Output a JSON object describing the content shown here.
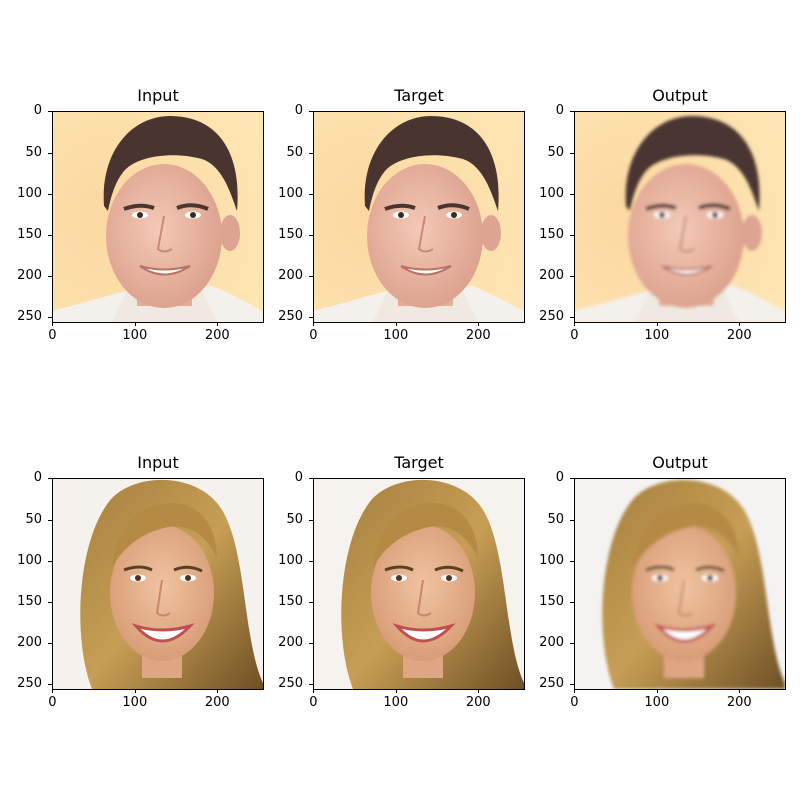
{
  "figure": {
    "rows": [
      {
        "subject": "man",
        "panels": [
          {
            "title": "Input",
            "variant": "sharp",
            "background": "#fde6b4"
          },
          {
            "title": "Target",
            "variant": "sharp",
            "background": "#fde6b4"
          },
          {
            "title": "Output",
            "variant": "smooth",
            "background": "#fbe7c1"
          }
        ]
      },
      {
        "subject": "woman",
        "panels": [
          {
            "title": "Input",
            "variant": "sharp",
            "background": "#f5f2ee"
          },
          {
            "title": "Target",
            "variant": "sharp",
            "background": "#f6f3ef"
          },
          {
            "title": "Output",
            "variant": "smooth",
            "background": "#f5f3f1"
          }
        ]
      }
    ],
    "y_ticks": [
      "0",
      "50",
      "100",
      "150",
      "200",
      "250"
    ],
    "x_ticks": [
      "0",
      "100",
      "200"
    ],
    "image_extent": 256
  }
}
